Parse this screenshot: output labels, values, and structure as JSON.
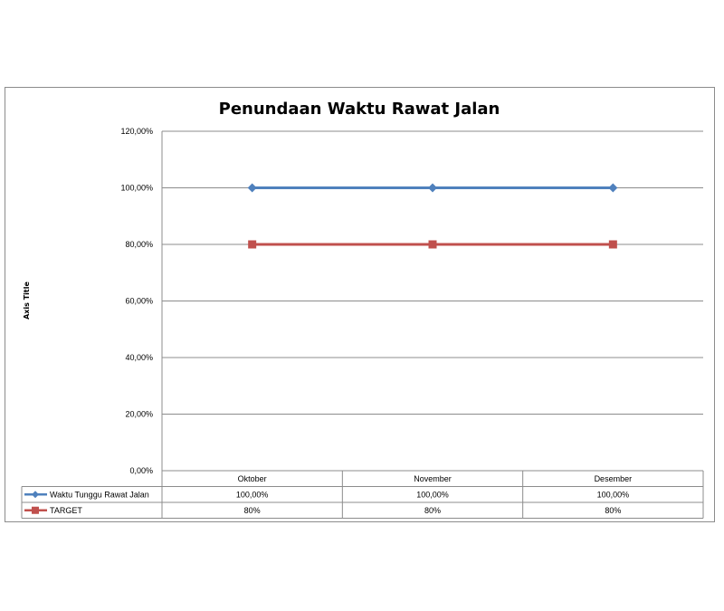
{
  "chart_data": {
    "type": "line",
    "title": "Penundaan Waktu Rawat Jalan",
    "ylabel": "Axis Title",
    "categories": [
      "Oktober",
      "November",
      "Desember"
    ],
    "ylim": [
      0,
      1.2
    ],
    "yticks": [
      "0,00%",
      "20,00%",
      "40,00%",
      "60,00%",
      "80,00%",
      "100,00%",
      "120,00%"
    ],
    "grid": true,
    "legend": "data-table",
    "series": [
      {
        "name": "Waktu Tunggu Rawat Jalan",
        "values": [
          1.0,
          1.0,
          1.0
        ],
        "labels": [
          "100,00%",
          "100,00%",
          "100,00%"
        ],
        "color": "#4f81bd",
        "marker": "diamond"
      },
      {
        "name": "TARGET",
        "values": [
          0.8,
          0.8,
          0.8
        ],
        "labels": [
          "80%",
          "80%",
          "80%"
        ],
        "color": "#c0504d",
        "marker": "square"
      }
    ]
  }
}
